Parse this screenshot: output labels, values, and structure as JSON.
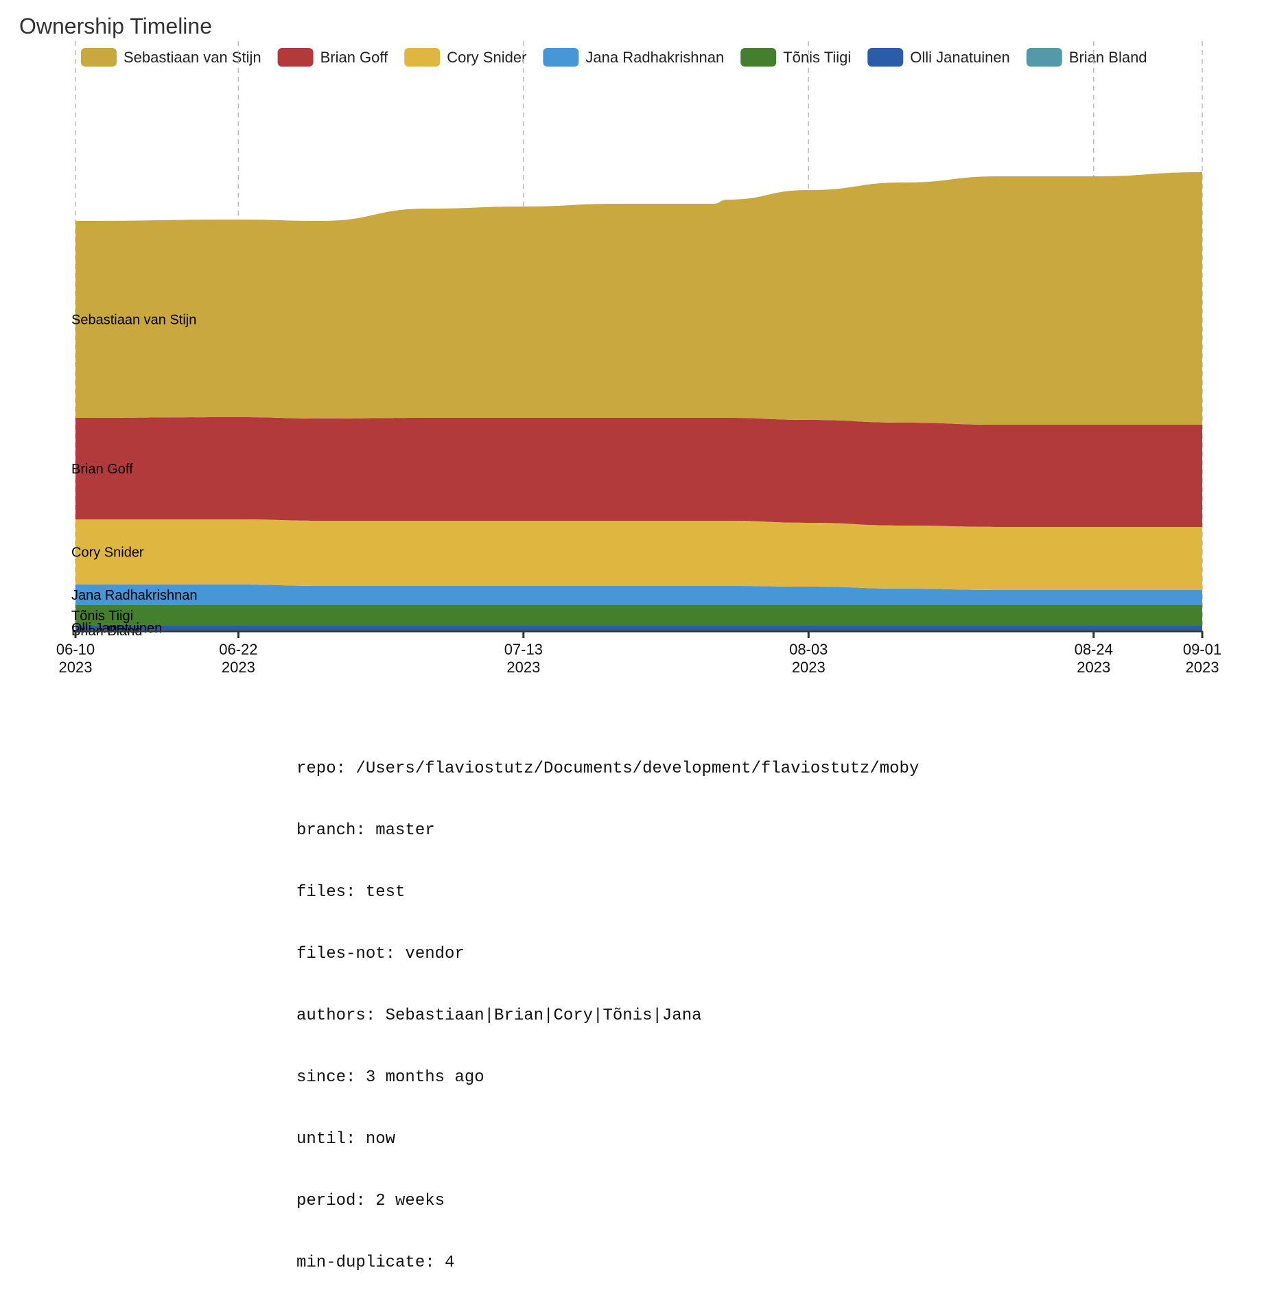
{
  "chart_data": {
    "type": "area",
    "title": "Ownership Timeline",
    "x": [
      "2023-06-10",
      "2023-06-22",
      "2023-06-28",
      "2023-07-06",
      "2023-07-13",
      "2023-07-20",
      "2023-07-27",
      "2023-07-28",
      "2023-08-03",
      "2023-08-10",
      "2023-08-17",
      "2023-08-24",
      "2023-09-01"
    ],
    "x_ticks": [
      {
        "date": "06-10",
        "year": "2023",
        "value": "2023-06-10"
      },
      {
        "date": "06-22",
        "year": "2023",
        "value": "2023-06-22"
      },
      {
        "date": "07-13",
        "year": "2023",
        "value": "2023-07-13"
      },
      {
        "date": "08-03",
        "year": "2023",
        "value": "2023-08-03"
      },
      {
        "date": "08-24",
        "year": "2023",
        "value": "2023-08-24"
      },
      {
        "date": "09-01",
        "year": "2023",
        "value": "2023-09-01"
      }
    ],
    "stacked": true,
    "grid": "vertical dashed at ticks",
    "legend_position": "top",
    "ylim": [
      0,
      820
    ],
    "series": [
      {
        "name": "Brian Bland",
        "color": "#5499a8",
        "values": [
          2,
          2,
          2,
          2,
          2,
          2,
          2,
          2,
          2,
          2,
          2,
          2,
          2
        ]
      },
      {
        "name": "Olli Janatuinen",
        "color": "#2b5ca8",
        "values": [
          6,
          6,
          6,
          6,
          6,
          6,
          6,
          6,
          6,
          6,
          6,
          6,
          6
        ]
      },
      {
        "name": "Tõnis Tiigi",
        "color": "#447f2e",
        "values": [
          30,
          30,
          30,
          30,
          30,
          30,
          30,
          30,
          30,
          30,
          30,
          30,
          30
        ]
      },
      {
        "name": "Jana Radhakrishnan",
        "color": "#4796d6",
        "values": [
          30,
          30,
          28,
          28,
          28,
          28,
          28,
          28,
          27,
          24,
          22,
          22,
          22
        ]
      },
      {
        "name": "Cory Snider",
        "color": "#deb640",
        "values": [
          95,
          95,
          95,
          95,
          95,
          95,
          95,
          95,
          93,
          92,
          92,
          92,
          92
        ]
      },
      {
        "name": "Brian Goff",
        "color": "#b33a3a",
        "values": [
          148,
          149,
          149,
          150,
          150,
          150,
          150,
          150,
          150,
          150,
          149,
          149,
          149
        ]
      },
      {
        "name": "Sebastiaan van Stijn",
        "color": "#c9a83f",
        "values": [
          287,
          288,
          288,
          305,
          308,
          312,
          312,
          318,
          335,
          350,
          362,
          362,
          368
        ]
      }
    ],
    "legend_order": [
      "Sebastiaan van Stijn",
      "Brian Goff",
      "Cory Snider",
      "Jana Radhakrishnan",
      "Tõnis Tiigi",
      "Olli Janatuinen",
      "Brian Bland"
    ],
    "area_labels": [
      "Sebastiaan van Stijn",
      "Brian Goff",
      "Cory Snider",
      "Jana Radhakrishnan",
      "Tõnis Tiigi",
      "Olli Janatuinen",
      "Brian Bland"
    ]
  },
  "info": {
    "repo": "repo: /Users/flaviostutz/Documents/development/flaviostutz/moby",
    "branch": "branch: master",
    "files": "files: test",
    "files_not": "files-not: vendor",
    "authors": "authors: Sebastiaan|Brian|Cory|Tõnis|Jana",
    "since": "since: 3 months ago",
    "until": "until: now",
    "period": "period: 2 weeks",
    "min_duplicate": "min-duplicate: 4"
  }
}
